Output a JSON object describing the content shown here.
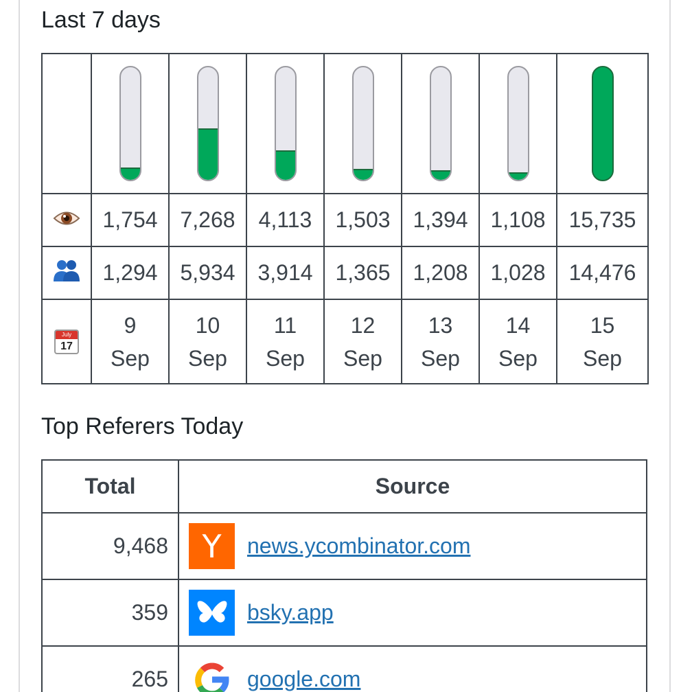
{
  "weekly": {
    "title": "Last 7 days",
    "icons": {
      "views": "eye-icon",
      "visitors": "users-icon",
      "date": "calendar-icon"
    },
    "calendar_icon_text": {
      "month": "July",
      "day": "17"
    },
    "fill_color": "#00a85a",
    "days": [
      {
        "day": "9",
        "month": "Sep",
        "views": "1,754",
        "visitors": "1,294",
        "level": 0.11
      },
      {
        "day": "10",
        "month": "Sep",
        "views": "7,268",
        "visitors": "5,934",
        "level": 0.46
      },
      {
        "day": "11",
        "month": "Sep",
        "views": "4,113",
        "visitors": "3,914",
        "level": 0.26
      },
      {
        "day": "12",
        "month": "Sep",
        "views": "1,503",
        "visitors": "1,365",
        "level": 0.095
      },
      {
        "day": "13",
        "month": "Sep",
        "views": "1,394",
        "visitors": "1,208",
        "level": 0.088
      },
      {
        "day": "14",
        "month": "Sep",
        "views": "1,108",
        "visitors": "1,028",
        "level": 0.07
      },
      {
        "day": "15",
        "month": "Sep",
        "views": "15,735",
        "visitors": "14,476",
        "level": 1.0
      }
    ]
  },
  "referrers": {
    "title": "Top Referers Today",
    "headers": {
      "total": "Total",
      "source": "Source"
    },
    "rows": [
      {
        "total": "9,468",
        "source": "news.ycombinator.com",
        "icon": "ycombinator-icon",
        "logo_text": "Y"
      },
      {
        "total": "359",
        "source": "bsky.app",
        "icon": "bluesky-icon"
      },
      {
        "total": "265",
        "source": "google.com",
        "icon": "google-icon"
      }
    ]
  }
}
